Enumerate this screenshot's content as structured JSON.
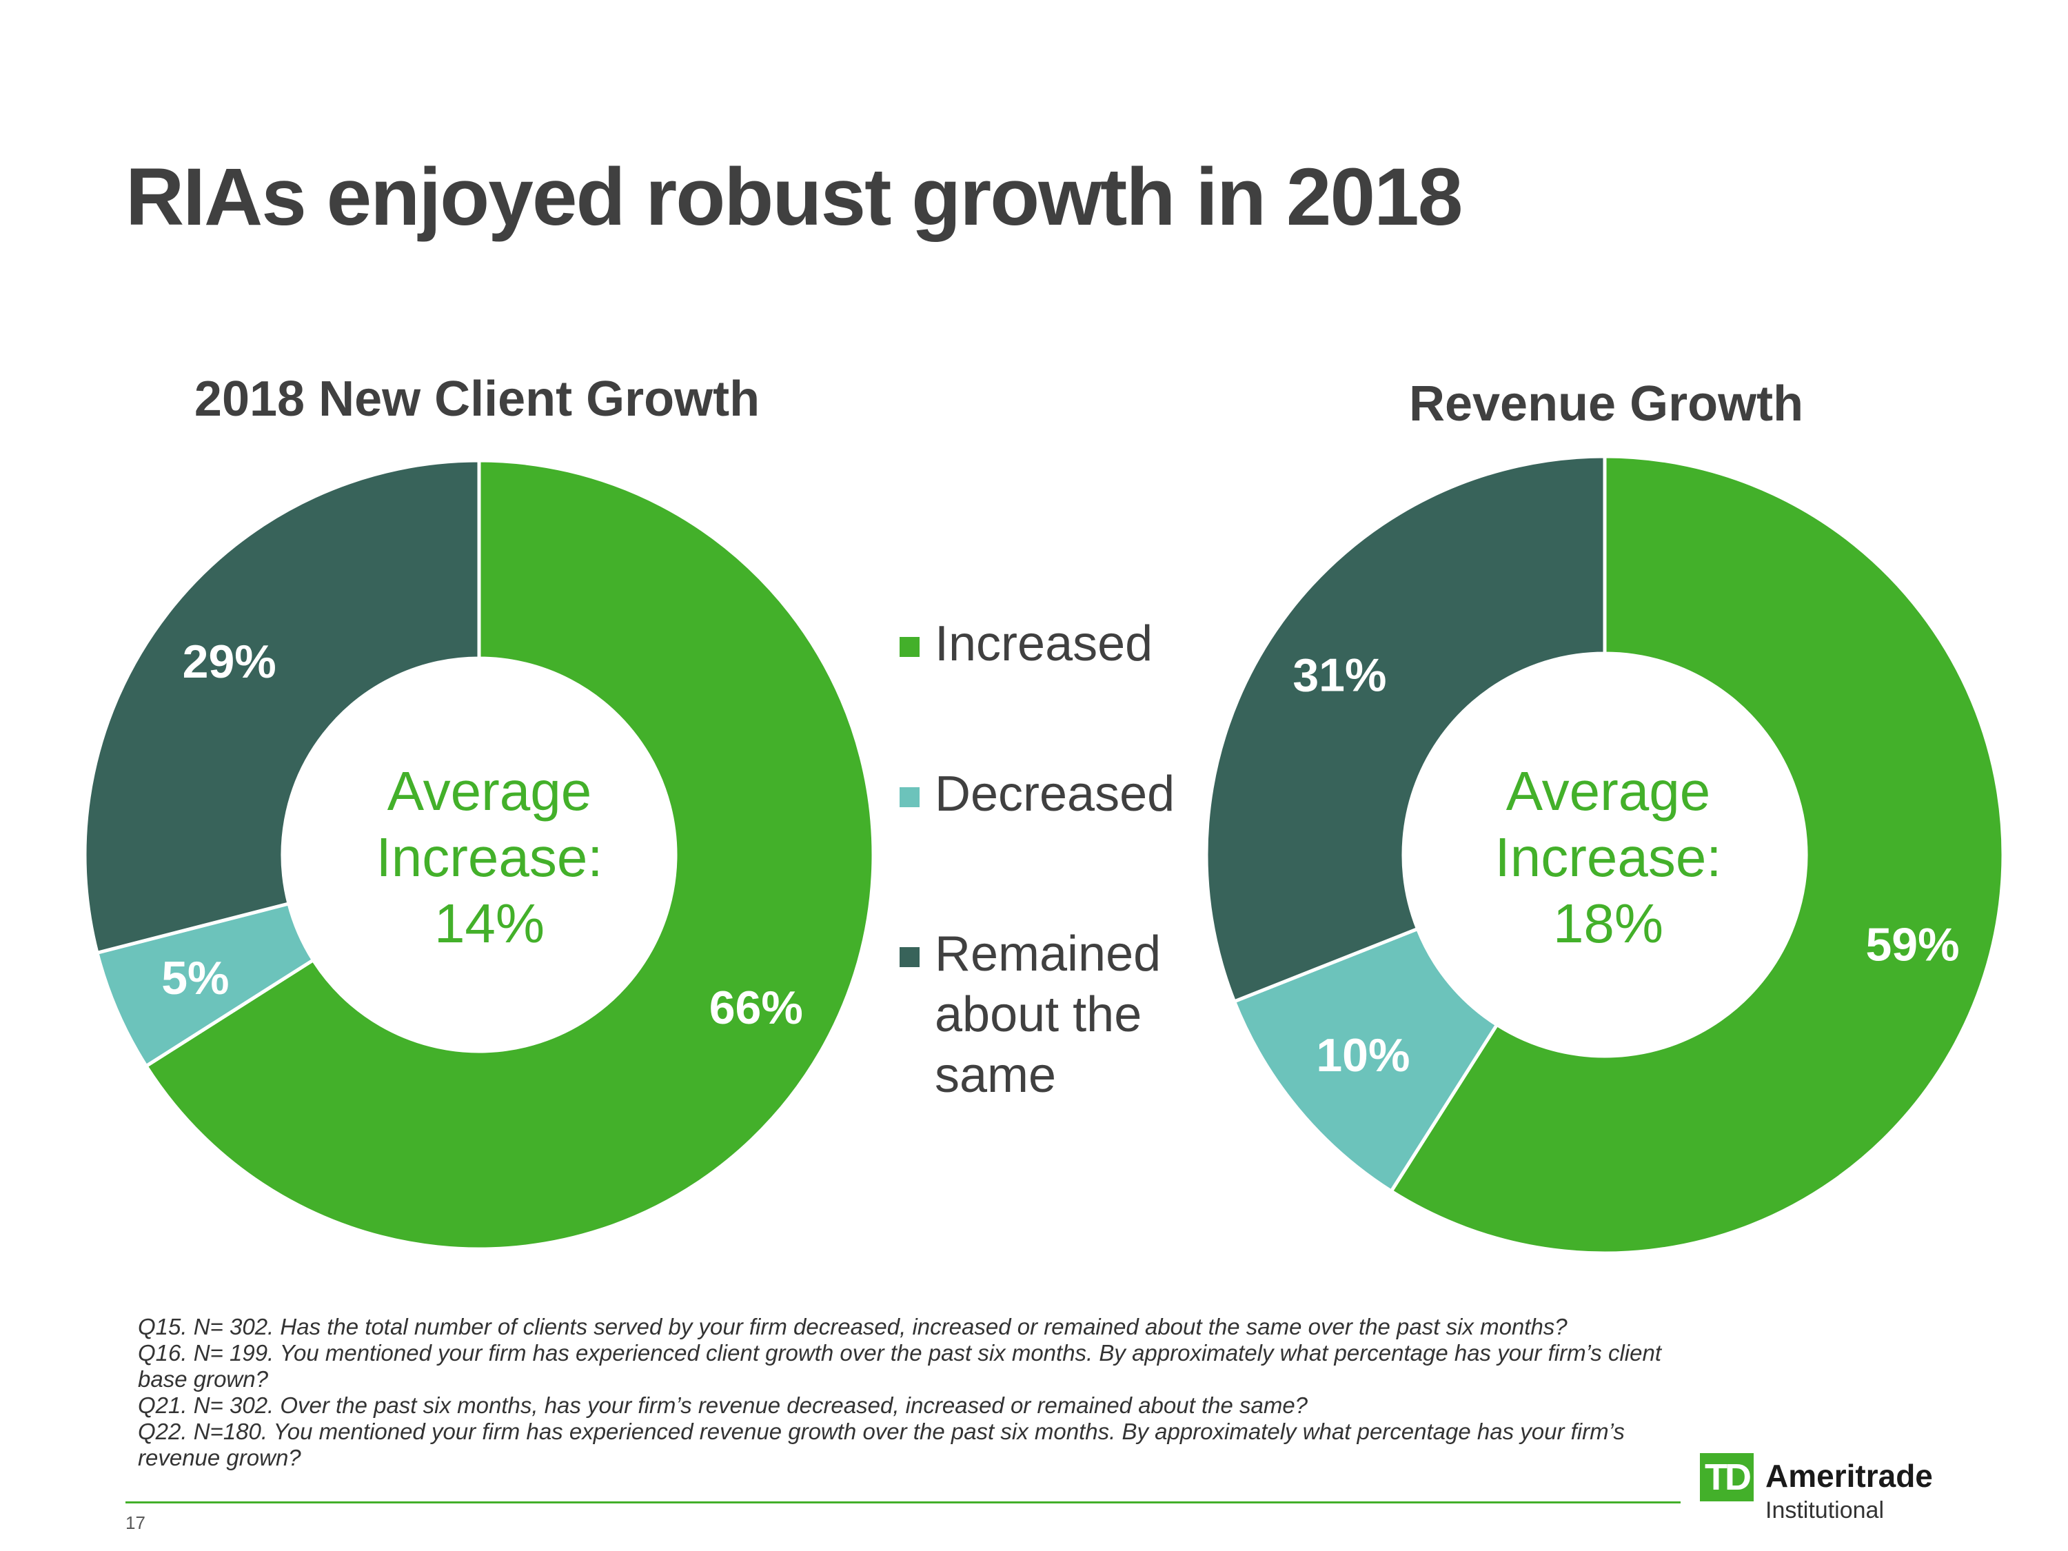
{
  "slide": {
    "title": "RIAs enjoyed robust growth in 2018",
    "page_number": "17"
  },
  "colors": {
    "increased": "#43b02a",
    "decreased": "#6cc3bb",
    "remained": "#38635a",
    "title_text": "#404040",
    "center_text": "#43b02a"
  },
  "legend": {
    "items": [
      {
        "label": "Increased",
        "color": "#43b02a"
      },
      {
        "label": "Decreased",
        "color": "#6cc3bb"
      },
      {
        "label": "Remained about the same",
        "color": "#38635a"
      }
    ]
  },
  "chart_data": [
    {
      "type": "pie",
      "subtype": "donut",
      "title": "2018 New Client Growth",
      "categories": [
        "Increased",
        "Decreased",
        "Remained about the same"
      ],
      "values": [
        66,
        5,
        29
      ],
      "labels": [
        "66%",
        "5%",
        "29%"
      ],
      "center_label": [
        "Average",
        "Increase:",
        "14%"
      ]
    },
    {
      "type": "pie",
      "subtype": "donut",
      "title": "Revenue Growth",
      "categories": [
        "Increased",
        "Decreased",
        "Remained about the same"
      ],
      "values": [
        59,
        10,
        31
      ],
      "labels": [
        "59%",
        "10%",
        "31%"
      ],
      "center_label": [
        "Average",
        "Increase:",
        "18%"
      ]
    }
  ],
  "footnotes": [
    "Q15. N= 302. Has the total number of clients served by your firm decreased, increased or remained about the same over the past six months?",
    "Q16. N= 199. You mentioned your firm has experienced client growth over the past six months. By approximately what percentage has your firm’s client base grown?",
    "Q21. N= 302. Over the past six months, has your firm’s revenue decreased, increased or remained about the same?",
    "Q22. N=180. You mentioned your firm has experienced revenue growth over the past six months. By approximately what percentage has your firm’s revenue grown?"
  ],
  "logo": {
    "mark": "TD",
    "name": "Ameritrade",
    "sub": "Institutional"
  }
}
